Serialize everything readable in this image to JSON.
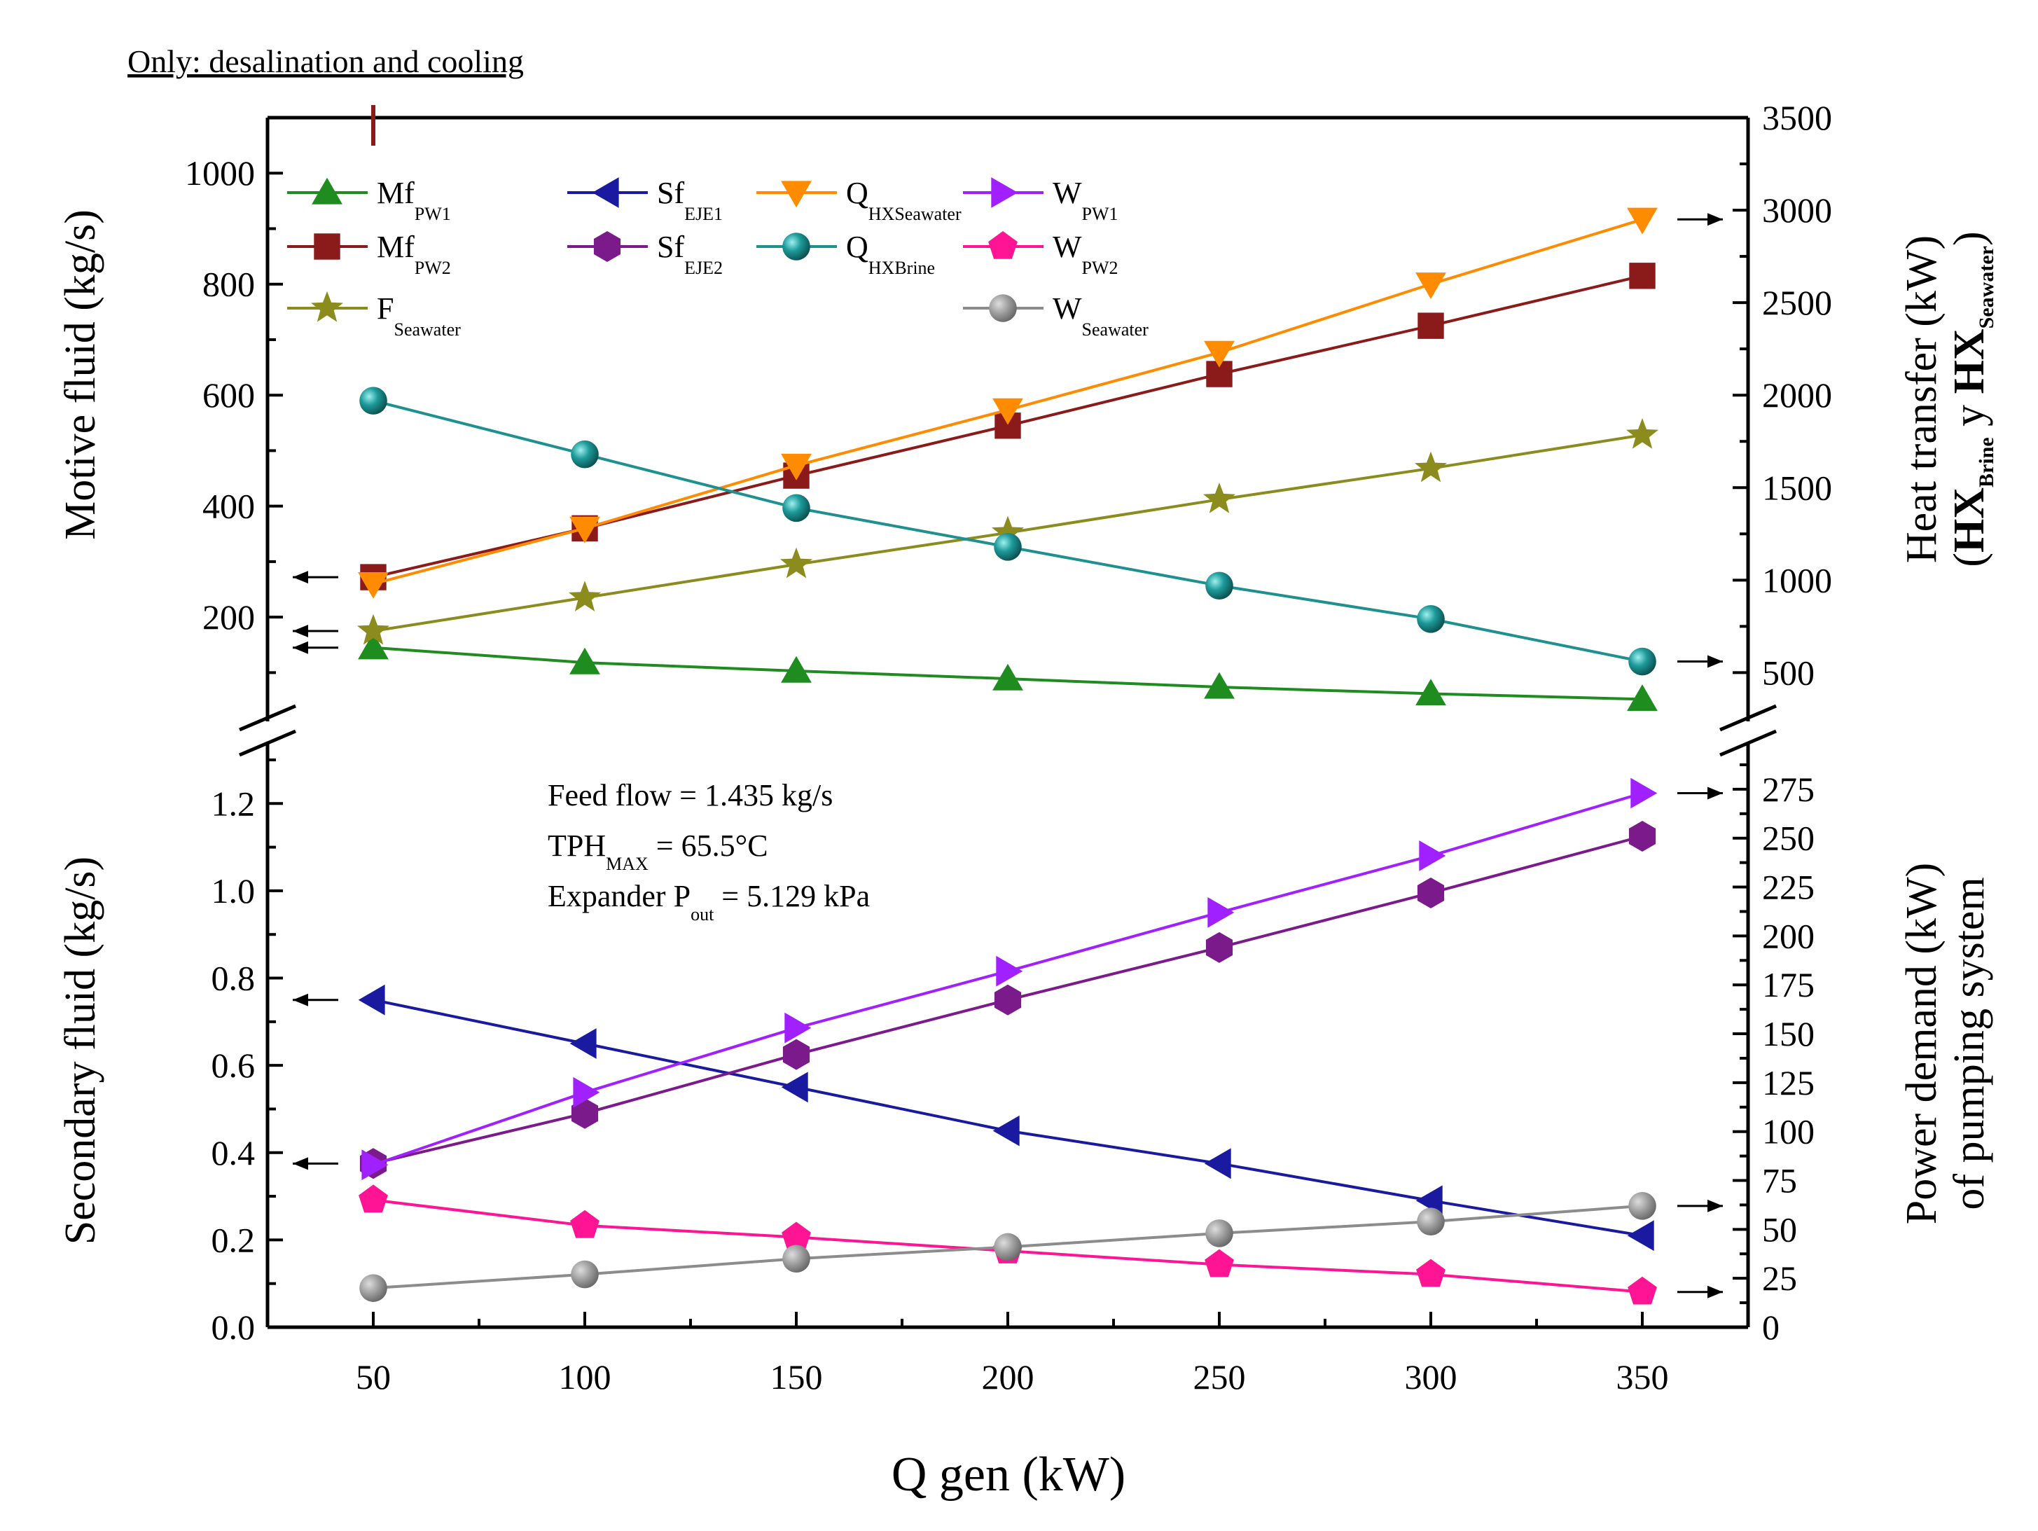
{
  "chart_data": {
    "type": "line",
    "top_note": "Only: desalination and cooling",
    "x": [
      50,
      100,
      150,
      200,
      250,
      300,
      350
    ],
    "xlabel": "Q gen (kW)",
    "xlim": [
      25,
      375
    ],
    "x_ticks": [
      "50",
      "100",
      "150",
      "200",
      "250",
      "300",
      "350"
    ],
    "upper_panel": {
      "left_axis": {
        "label": "Motive fluid (kg/s)",
        "range": [
          50,
          1100
        ],
        "ticks": [
          "200",
          "400",
          "600",
          "800",
          "1000"
        ]
      },
      "right_axis": {
        "label_line1": "Heat transfer (kW)",
        "label_line2_parts": [
          "(",
          "HX",
          "Brine",
          " y ",
          "HX",
          "Seawater",
          ")"
        ],
        "range": [
          350,
          3500
        ],
        "ticks": [
          "500",
          "1000",
          "1500",
          "2000",
          "2500",
          "3000",
          "3500"
        ]
      },
      "series": [
        {
          "id": "mf_pw1",
          "name": "Mf",
          "sub": "PW1",
          "axis": "left",
          "color": "#1e8c1e",
          "marker": "triangle-up",
          "values": [
            145,
            118,
            103,
            89,
            74,
            62,
            52
          ]
        },
        {
          "id": "mf_pw2",
          "name": "Mf",
          "sub": "PW2",
          "axis": "left",
          "color": "#8b1a1a",
          "marker": "square",
          "values": [
            272,
            360,
            455,
            545,
            638,
            725,
            815
          ]
        },
        {
          "id": "f_seawater",
          "name": "F",
          "sub": "Seawater",
          "axis": "left",
          "color": "#8b8b1e",
          "marker": "star",
          "values": [
            175,
            235,
            295,
            352,
            412,
            468,
            528
          ]
        },
        {
          "id": "q_hxseawater",
          "name": "Q",
          "sub": "HXSeawater",
          "axis": "right",
          "color": "#ff8c00",
          "marker": "triangle-down",
          "values": [
            980,
            1280,
            1620,
            1920,
            2230,
            2600,
            2950
          ]
        },
        {
          "id": "q_hxbrine",
          "name": "Q",
          "sub": "HXBrine",
          "axis": "right",
          "color": "#1e9090",
          "marker": "circle-shaded",
          "values": [
            1970,
            1680,
            1390,
            1180,
            970,
            790,
            560
          ]
        }
      ]
    },
    "lower_panel": {
      "left_axis": {
        "label": "Secondary fluid (kg/s)",
        "range": [
          0,
          1.3
        ],
        "ticks": [
          "0.0",
          "0.2",
          "0.4",
          "0.6",
          "0.8",
          "1.0",
          "1.2"
        ]
      },
      "right_axis": {
        "label_line1": "Power demand (kW)",
        "label_line2": "of pumping system",
        "range": [
          0,
          290
        ],
        "ticks": [
          "0",
          "25",
          "50",
          "75",
          "100",
          "125",
          "150",
          "175",
          "200",
          "225",
          "250",
          "275"
        ]
      },
      "series": [
        {
          "id": "sf_eje1",
          "name": "Sf",
          "sub": "EJE1",
          "axis": "left",
          "color": "#1a1aa0",
          "marker": "triangle-left",
          "values": [
            0.75,
            0.65,
            0.55,
            0.45,
            0.375,
            0.29,
            0.21
          ]
        },
        {
          "id": "sf_eje2",
          "name": "Sf",
          "sub": "EJE2",
          "axis": "left",
          "color": "#7b1a8b",
          "marker": "hexagon",
          "values": [
            0.375,
            0.49,
            0.625,
            0.75,
            0.87,
            0.995,
            1.125
          ]
        },
        {
          "id": "w_pw1",
          "name": "W",
          "sub": "PW1",
          "axis": "right",
          "color": "#a020ff",
          "marker": "triangle-right",
          "values": [
            83,
            120,
            153,
            182,
            212,
            241,
            273
          ]
        },
        {
          "id": "w_pw2",
          "name": "W",
          "sub": "PW2",
          "axis": "right",
          "color": "#ff1493",
          "marker": "pentagon",
          "values": [
            65,
            52,
            46,
            39,
            32,
            27,
            18
          ]
        },
        {
          "id": "w_seawater",
          "name": "W",
          "sub": "Seawater",
          "axis": "right",
          "color": "#8c8c8c",
          "marker": "circle-gray",
          "values": [
            20,
            27,
            35,
            41,
            48,
            54,
            62
          ]
        }
      ],
      "annotations": [
        {
          "parts": [
            "Feed flow = 1.435 kg/s"
          ]
        },
        {
          "parts": [
            "TPH",
            "MAX",
            " = 65.5°C"
          ]
        },
        {
          "parts": [
            "Expander P",
            "out",
            " = 5.129 kPa"
          ]
        }
      ]
    },
    "legend": {
      "placement": "top-left of upper panel",
      "order": [
        "mf_pw1",
        "sf_eje1",
        "q_hxseawater",
        "w_pw1",
        "mf_pw2",
        "sf_eje2",
        "q_hxbrine",
        "w_pw2",
        "f_seawater",
        "w_seawater"
      ]
    },
    "grid": false
  }
}
